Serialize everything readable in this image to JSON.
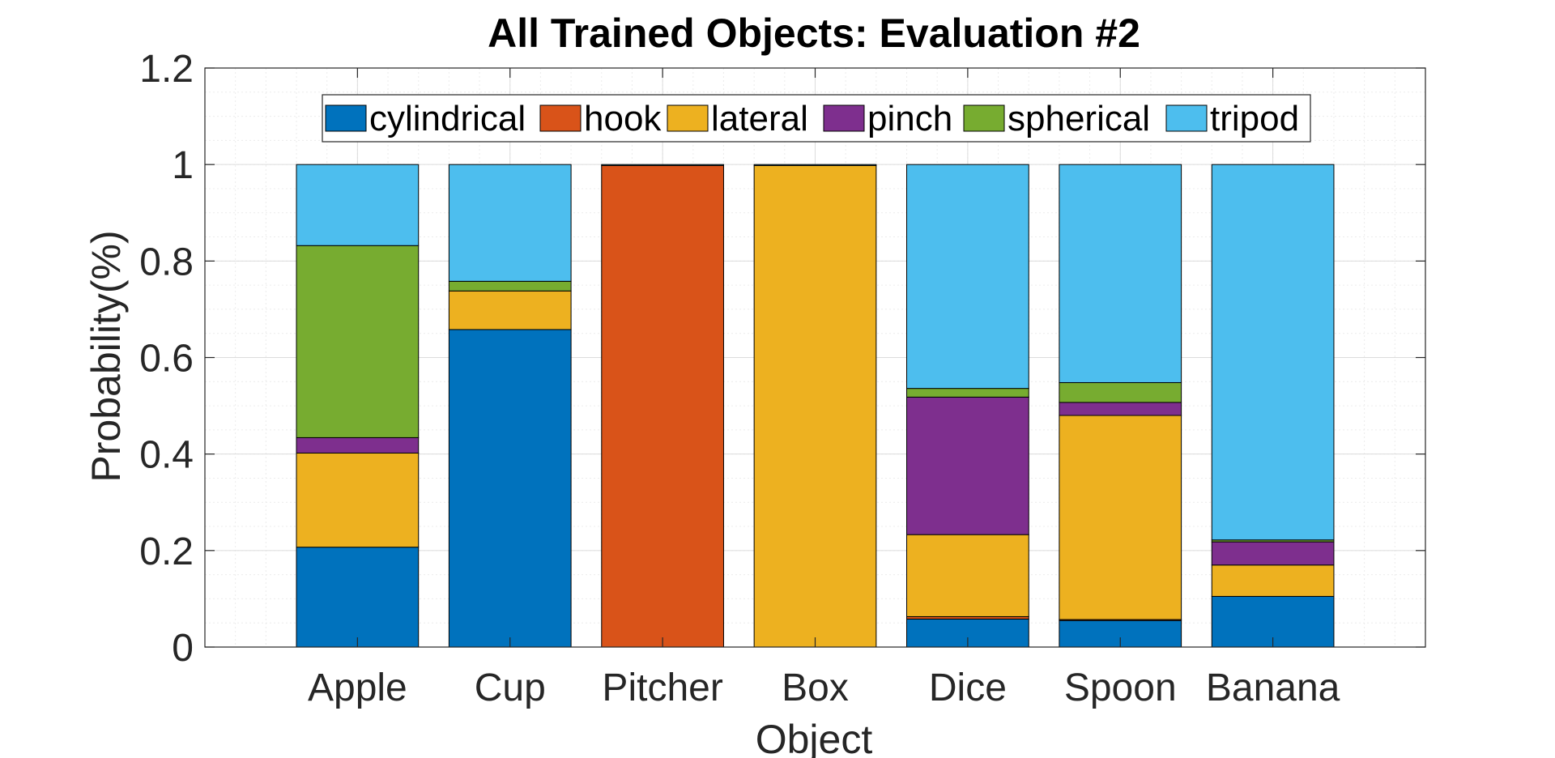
{
  "chart_data": {
    "type": "bar",
    "stacked": true,
    "title": "All Trained Objects: Evaluation #2",
    "xlabel": "Object",
    "ylabel": "Probability(%)",
    "ylim": [
      0,
      1.2
    ],
    "yticks": [
      "0",
      "0.2",
      "0.4",
      "0.6",
      "0.8",
      "1",
      "1.2"
    ],
    "grid": true,
    "minor_grid": true,
    "legend_position": "top",
    "categories": [
      "Apple",
      "Cup",
      "Pitcher",
      "Box",
      "Dice",
      "Spoon",
      "Banana"
    ],
    "series": [
      {
        "name": "cylindrical",
        "color": "#0072BD",
        "values": [
          0.207,
          0.658,
          0.0,
          0.0,
          0.058,
          0.055,
          0.105
        ]
      },
      {
        "name": "hook",
        "color": "#D95319",
        "values": [
          0.0,
          0.0,
          0.998,
          0.0,
          0.005,
          0.002,
          0.0
        ]
      },
      {
        "name": "lateral",
        "color": "#EDB120",
        "values": [
          0.195,
          0.08,
          0.0,
          0.998,
          0.17,
          0.423,
          0.065
        ]
      },
      {
        "name": "pinch",
        "color": "#7E2F8E",
        "values": [
          0.032,
          0.0,
          0.0,
          0.0,
          0.285,
          0.027,
          0.048
        ]
      },
      {
        "name": "spherical",
        "color": "#77AC30",
        "values": [
          0.398,
          0.02,
          0.0,
          0.0,
          0.018,
          0.041,
          0.004
        ]
      },
      {
        "name": "tripod",
        "color": "#4DBEEE",
        "values": [
          0.168,
          0.242,
          0.002,
          0.002,
          0.464,
          0.452,
          0.778
        ]
      }
    ]
  }
}
